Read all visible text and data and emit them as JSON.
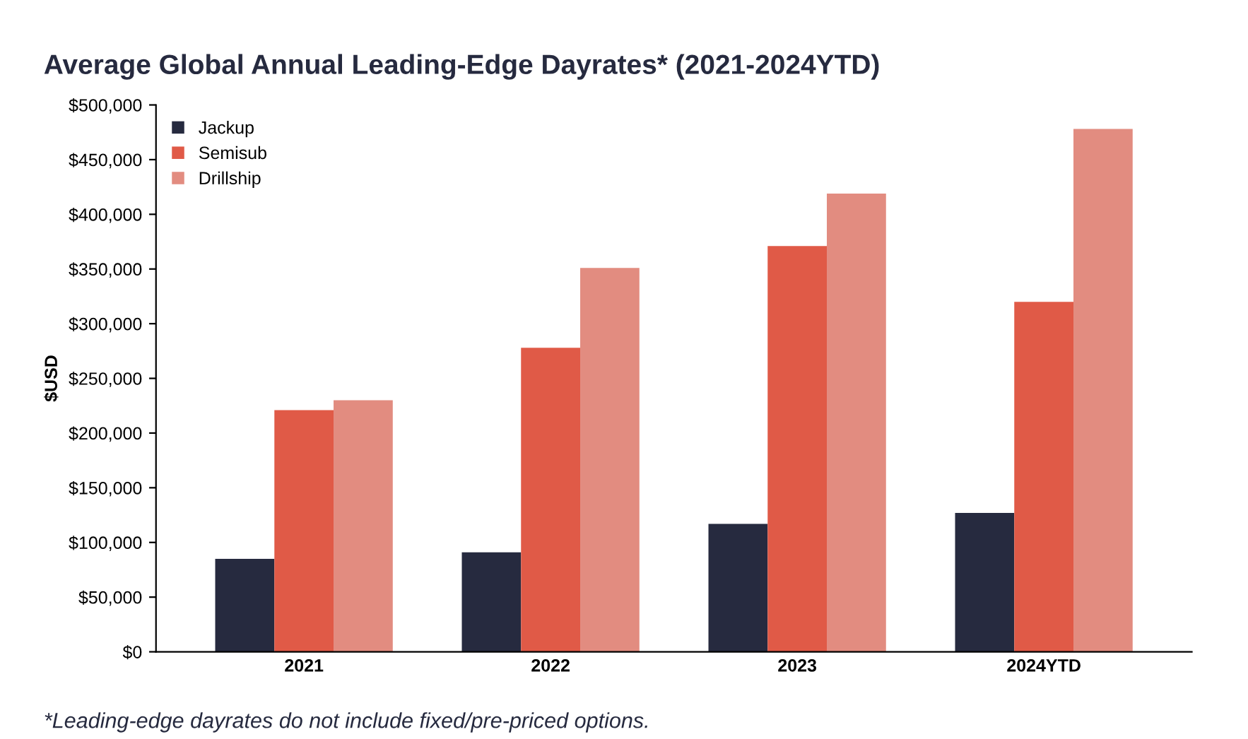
{
  "chart_data": {
    "type": "bar",
    "title": "Average Global Annual Leading-Edge Dayrates* (2021-2024YTD)",
    "ylabel": "$USD",
    "categories": [
      "2021",
      "2022",
      "2023",
      "2024YTD"
    ],
    "series": [
      {
        "name": "Jackup",
        "color": "#262a3f",
        "values": [
          85000,
          91000,
          117000,
          127000
        ]
      },
      {
        "name": "Semisub",
        "color": "#e05a47",
        "values": [
          221000,
          278000,
          371000,
          320000
        ]
      },
      {
        "name": "Drillship",
        "color": "#e28c80",
        "values": [
          230000,
          351000,
          419000,
          478000
        ]
      }
    ],
    "ylim": [
      0,
      500000
    ],
    "yticks": [
      {
        "value": 0,
        "label": "$0"
      },
      {
        "value": 50000,
        "label": "$50,000"
      },
      {
        "value": 100000,
        "label": "$100,000"
      },
      {
        "value": 150000,
        "label": "$150,000"
      },
      {
        "value": 200000,
        "label": "$200,000"
      },
      {
        "value": 250000,
        "label": "$250,000"
      },
      {
        "value": 300000,
        "label": "$300,000"
      },
      {
        "value": 350000,
        "label": "$350,000"
      },
      {
        "value": 400000,
        "label": "$400,000"
      },
      {
        "value": 450000,
        "label": "$450,000"
      },
      {
        "value": 500000,
        "label": "$500,000"
      }
    ],
    "grid": false,
    "legend": "top left",
    "annotations": [
      "*Leading-edge dayrates do not include fixed/pre-priced options."
    ]
  }
}
